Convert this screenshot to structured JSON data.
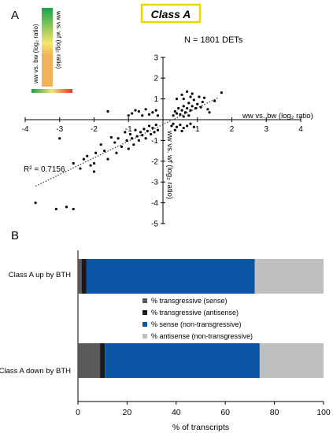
{
  "panels": {
    "a_label": "A",
    "b_label": "B"
  },
  "colors": {
    "title_border": "#e8d800",
    "scatter_point": "#000000",
    "trend_line": "#333333",
    "transgressive_sense": "#595959",
    "transgressive_antisense": "#1a1a1a",
    "sense_non_transgressive": "#0b56a4",
    "antisense_non_transgressive": "#bfbfbf",
    "heat_green": "#1aa34a",
    "heat_yellow": "#f5e76b",
    "heat_orange": "#f2b25a",
    "heat_red": "#e8342a"
  },
  "chart_data": [
    {
      "type": "scatter",
      "title": "Class A",
      "annotation_n": "N = 1801 DETs",
      "annotation_r2": "R² = 0.7156",
      "xlabel": "ww vs. bw (log₂ ratio)",
      "ylabel": "ww vs. wf (log₂ ratio)",
      "xlim": [
        -4,
        4
      ],
      "ylim": [
        -5,
        3
      ],
      "xticks": [
        -4,
        -3,
        -2,
        -1,
        1,
        2,
        3,
        4
      ],
      "yticks": [
        -5,
        -4,
        -3,
        -2,
        -1,
        1,
        2,
        3
      ],
      "grid": false,
      "trendline": {
        "x": [
          -3.7,
          1.6
        ],
        "y": [
          -3.2,
          1.05
        ]
      },
      "legend": {
        "type": "heat-scale",
        "xlabel": "ww vs. bw (log₂ ratio)",
        "ylabel": "ww vs. wf (log₂ ratio)"
      },
      "points": [
        [
          -3.7,
          -4.0
        ],
        [
          -3.1,
          -4.3
        ],
        [
          -2.8,
          -4.2
        ],
        [
          -2.6,
          -4.3
        ],
        [
          -2.6,
          -2.1
        ],
        [
          -2.4,
          -2.35
        ],
        [
          -2.1,
          -2.2
        ],
        [
          -2.0,
          -2.5
        ],
        [
          -2.2,
          -1.75
        ],
        [
          -2.3,
          -1.9
        ],
        [
          -1.95,
          -1.6
        ],
        [
          -2.0,
          -2.1
        ],
        [
          -1.8,
          -1.2
        ],
        [
          -1.7,
          -1.5
        ],
        [
          -1.6,
          -1.9
        ],
        [
          -1.5,
          -0.85
        ],
        [
          -1.4,
          -1.1
        ],
        [
          -1.35,
          -1.6
        ],
        [
          -1.3,
          -0.9
        ],
        [
          -1.2,
          -1.3
        ],
        [
          -1.1,
          -0.6
        ],
        [
          -1.05,
          -1.0
        ],
        [
          -1.0,
          -1.4
        ],
        [
          -0.95,
          -0.7
        ],
        [
          -0.9,
          -0.9
        ],
        [
          -0.85,
          -1.2
        ],
        [
          -0.8,
          -0.5
        ],
        [
          -0.75,
          -0.8
        ],
        [
          -0.7,
          -1.0
        ],
        [
          -0.65,
          -0.6
        ],
        [
          -0.6,
          -0.75
        ],
        [
          -0.55,
          -0.45
        ],
        [
          -0.5,
          -0.9
        ],
        [
          -0.45,
          -0.55
        ],
        [
          -0.4,
          -0.3
        ],
        [
          -0.35,
          -0.7
        ],
        [
          -0.3,
          -0.4
        ],
        [
          -0.25,
          -0.6
        ],
        [
          -0.2,
          -0.25
        ],
        [
          -0.15,
          -0.5
        ],
        [
          -3.0,
          -0.9
        ],
        [
          -1.6,
          0.4
        ],
        [
          -0.9,
          0.3
        ],
        [
          -0.7,
          0.4
        ],
        [
          -0.6,
          0.2
        ],
        [
          -0.5,
          0.5
        ],
        [
          -0.4,
          0.25
        ],
        [
          -0.3,
          0.35
        ],
        [
          -0.2,
          0.45
        ],
        [
          -0.15,
          0.2
        ],
        [
          -0.8,
          0.45
        ],
        [
          -1.0,
          0.2
        ],
        [
          0.3,
          0.2
        ],
        [
          0.35,
          0.4
        ],
        [
          0.4,
          0.3
        ],
        [
          0.45,
          0.55
        ],
        [
          0.5,
          0.25
        ],
        [
          0.55,
          0.45
        ],
        [
          0.6,
          0.65
        ],
        [
          0.65,
          0.35
        ],
        [
          0.7,
          0.55
        ],
        [
          0.75,
          0.8
        ],
        [
          0.8,
          0.45
        ],
        [
          0.85,
          0.65
        ],
        [
          0.9,
          0.95
        ],
        [
          0.95,
          0.55
        ],
        [
          1.0,
          0.75
        ],
        [
          1.05,
          1.1
        ],
        [
          1.1,
          0.6
        ],
        [
          1.15,
          0.85
        ],
        [
          0.55,
          1.2
        ],
        [
          0.7,
          1.35
        ],
        [
          0.85,
          1.25
        ],
        [
          0.4,
          1.0
        ],
        [
          0.6,
          1.0
        ],
        [
          0.8,
          1.1
        ],
        [
          1.2,
          1.05
        ],
        [
          1.3,
          0.5
        ],
        [
          1.35,
          0.35
        ],
        [
          1.7,
          1.3
        ],
        [
          1.5,
          0.9
        ],
        [
          0.6,
          0.15
        ],
        [
          0.75,
          0.2
        ],
        [
          0.3,
          -0.2
        ],
        [
          0.4,
          -0.35
        ],
        [
          0.5,
          -0.25
        ],
        [
          0.6,
          -0.4
        ],
        [
          0.7,
          -0.3
        ],
        [
          0.8,
          -0.2
        ],
        [
          0.9,
          -0.35
        ],
        [
          0.35,
          -0.5
        ],
        [
          0.55,
          -0.55
        ],
        [
          0.25,
          -0.3
        ]
      ]
    },
    {
      "type": "bar",
      "orientation": "horizontal",
      "stacked": true,
      "categories": [
        "Class A up by BTH",
        "Class A down by BTH"
      ],
      "xlabel": "% of transcripts",
      "xlim": [
        0,
        100
      ],
      "xticks": [
        0,
        20,
        40,
        60,
        80,
        100
      ],
      "legend_position": "center",
      "series": [
        {
          "name": "% transgressive (sense)",
          "values": [
            1.5,
            9
          ]
        },
        {
          "name": "% transgressive (antisense)",
          "values": [
            2,
            2
          ]
        },
        {
          "name": "% sense (non-transgressive)",
          "values": [
            68.5,
            63
          ]
        },
        {
          "name": "% antisense (non-transgressive)",
          "values": [
            28,
            26
          ]
        }
      ]
    }
  ]
}
